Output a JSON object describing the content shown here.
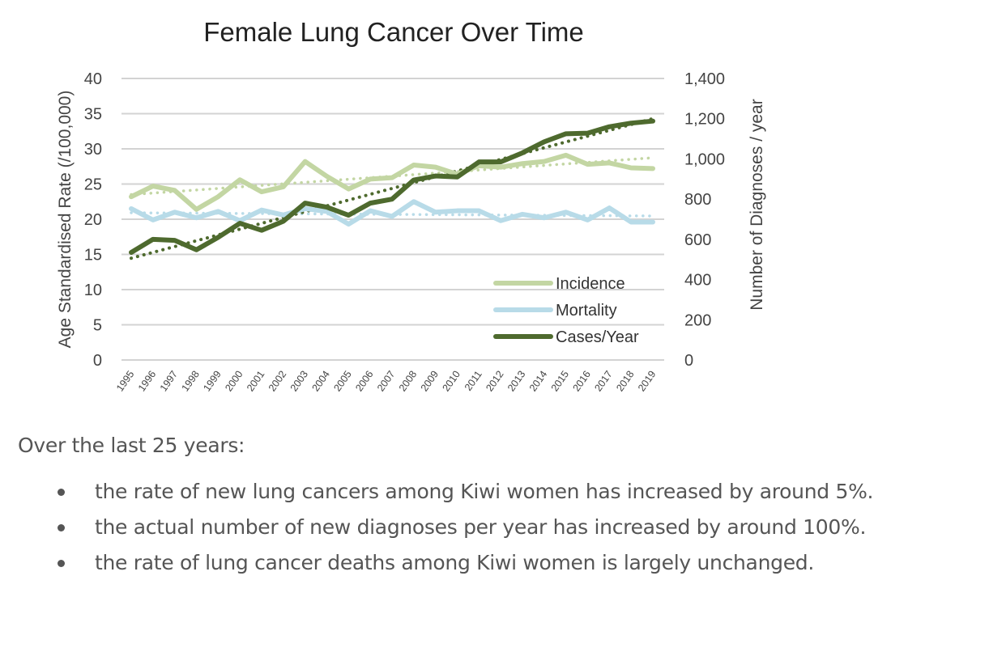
{
  "chart_data": {
    "type": "line",
    "title": "Female Lung Cancer Over Time",
    "x": [
      "1995",
      "1996",
      "1997",
      "1998",
      "1999",
      "2000",
      "2001",
      "2002",
      "2003",
      "2004",
      "2005",
      "2006",
      "2007",
      "2008",
      "2009",
      "2010",
      "2011",
      "2012",
      "2013",
      "2014",
      "2015",
      "2016",
      "2017",
      "2018",
      "2019"
    ],
    "ylabel": "Age Standardised Rate (/100,000)",
    "y2label": "Number of Diagnoses / year",
    "ylim": [
      0,
      40
    ],
    "y2lim": [
      0,
      1400
    ],
    "yticks": [
      "0",
      "5",
      "10",
      "15",
      "20",
      "25",
      "30",
      "35",
      "40"
    ],
    "y2ticks": [
      "0",
      "200",
      "400",
      "600",
      "800",
      "1,000",
      "1,200",
      "1,400"
    ],
    "grid": true,
    "legend_position": "bottom-right",
    "series": [
      {
        "name": "Incidence",
        "axis": "left",
        "color": "#c3d6a3",
        "trendline": true,
        "values": [
          23.2,
          24.7,
          24.1,
          21.4,
          23.2,
          25.6,
          23.9,
          24.6,
          28.2,
          26.1,
          24.3,
          25.7,
          25.9,
          27.7,
          27.4,
          26.4,
          27.6,
          27.4,
          27.9,
          28.2,
          29.1,
          27.8,
          28.0,
          27.3,
          27.2
        ]
      },
      {
        "name": "Mortality",
        "axis": "left",
        "color": "#b8dbe8",
        "trendline": true,
        "values": [
          21.5,
          19.9,
          21.0,
          20.2,
          21.1,
          19.8,
          21.3,
          20.6,
          21.5,
          21.1,
          19.3,
          21.2,
          20.4,
          22.5,
          21.0,
          21.2,
          21.2,
          19.8,
          20.7,
          20.2,
          21.0,
          19.9,
          21.6,
          19.6,
          19.6
        ]
      },
      {
        "name": "Cases/Year",
        "axis": "right",
        "color": "#4e6a2e",
        "trendline": true,
        "values": [
          535,
          600,
          595,
          548,
          610,
          680,
          645,
          690,
          780,
          760,
          720,
          780,
          800,
          895,
          915,
          910,
          985,
          985,
          1030,
          1085,
          1125,
          1128,
          1160,
          1178,
          1188
        ]
      }
    ]
  },
  "summary": {
    "intro": "Over the last 25 years:",
    "bullets": [
      "the rate of new lung cancers among Kiwi women has increased by around 5%.",
      "the actual number of new diagnoses per year has increased by around 100%.",
      "the rate of lung cancer deaths among Kiwi women is largely unchanged."
    ]
  }
}
